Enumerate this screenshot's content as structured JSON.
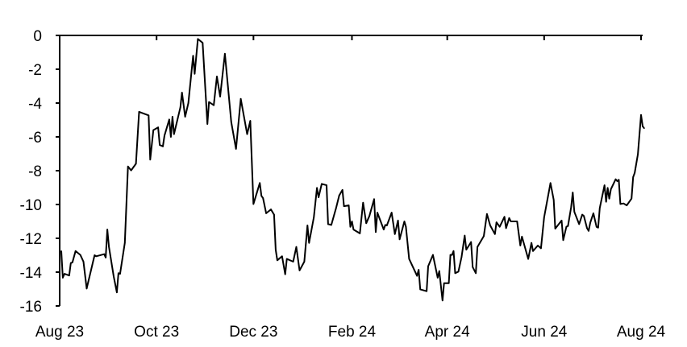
{
  "chart_data": {
    "type": "line",
    "title": "",
    "xlabel": "",
    "ylabel": "",
    "ylim": [
      -16,
      0
    ],
    "xlim": [
      "2023-08-01",
      "2024-08-01"
    ],
    "grid": false,
    "line_color": "#000000",
    "y_ticks": [
      "0",
      "-2",
      "-4",
      "-6",
      "-8",
      "-10",
      "-12",
      "-14",
      "-16"
    ],
    "y_tick_values": [
      0,
      -2,
      -4,
      -6,
      -8,
      -10,
      -12,
      -14,
      -16
    ],
    "x_ticks": [
      "Aug 23",
      "Oct 23",
      "Dec 23",
      "Feb 24",
      "Apr 24",
      "Jun 24",
      "Aug 24"
    ],
    "x_tick_dates": [
      "2023-08-01",
      "2023-10-01",
      "2023-12-01",
      "2024-02-01",
      "2024-04-01",
      "2024-06-01",
      "2024-08-01"
    ],
    "series": [
      {
        "points": [
          [
            "2023-08-02",
            -12.75
          ],
          [
            "2023-08-03",
            -14.33
          ],
          [
            "2023-08-04",
            -14.1
          ],
          [
            "2023-08-07",
            -14.2
          ],
          [
            "2023-08-08",
            -13.46
          ],
          [
            "2023-08-09",
            -13.43
          ],
          [
            "2023-08-11",
            -12.75
          ],
          [
            "2023-08-14",
            -12.98
          ],
          [
            "2023-08-16",
            -13.38
          ],
          [
            "2023-08-18",
            -14.97
          ],
          [
            "2023-08-23",
            -13.0
          ],
          [
            "2023-08-24",
            -13.06
          ],
          [
            "2023-08-29",
            -12.94
          ],
          [
            "2023-08-30",
            -13.14
          ],
          [
            "2023-08-31",
            -11.48
          ],
          [
            "2023-09-01",
            -12.5
          ],
          [
            "2023-09-04",
            -14.25
          ],
          [
            "2023-09-06",
            -15.2
          ],
          [
            "2023-09-07",
            -14.06
          ],
          [
            "2023-09-08",
            -14.1
          ],
          [
            "2023-09-11",
            -12.27
          ],
          [
            "2023-09-13",
            -7.75
          ],
          [
            "2023-09-15",
            -7.98
          ],
          [
            "2023-09-18",
            -7.59
          ],
          [
            "2023-09-20",
            -4.52
          ],
          [
            "2023-09-26",
            -4.73
          ],
          [
            "2023-09-27",
            -7.35
          ],
          [
            "2023-09-29",
            -5.6
          ],
          [
            "2023-10-02",
            -5.44
          ],
          [
            "2023-10-03",
            -6.48
          ],
          [
            "2023-10-05",
            -6.56
          ],
          [
            "2023-10-06",
            -5.92
          ],
          [
            "2023-10-09",
            -4.97
          ],
          [
            "2023-10-10",
            -6.0
          ],
          [
            "2023-10-11",
            -4.81
          ],
          [
            "2023-10-12",
            -5.84
          ],
          [
            "2023-10-16",
            -4.25
          ],
          [
            "2023-10-17",
            -3.38
          ],
          [
            "2023-10-19",
            -4.81
          ],
          [
            "2023-10-21",
            -4.0
          ],
          [
            "2023-10-24",
            -1.2
          ],
          [
            "2023-10-25",
            -2.27
          ],
          [
            "2023-10-27",
            -0.21
          ],
          [
            "2023-10-30",
            -0.44
          ],
          [
            "2023-11-02",
            -5.24
          ],
          [
            "2023-11-03",
            -3.94
          ],
          [
            "2023-11-06",
            -4.13
          ],
          [
            "2023-11-08",
            -2.43
          ],
          [
            "2023-11-10",
            -3.62
          ],
          [
            "2023-11-13",
            -1.08
          ],
          [
            "2023-11-17",
            -5.13
          ],
          [
            "2023-11-20",
            -6.71
          ],
          [
            "2023-11-23",
            -3.75
          ],
          [
            "2023-11-27",
            -5.84
          ],
          [
            "2023-11-29",
            -5.05
          ],
          [
            "2023-12-01",
            -9.97
          ],
          [
            "2023-12-05",
            -8.73
          ],
          [
            "2023-12-06",
            -9.49
          ],
          [
            "2023-12-07",
            -9.62
          ],
          [
            "2023-12-09",
            -10.52
          ],
          [
            "2023-12-12",
            -10.29
          ],
          [
            "2023-12-14",
            -10.6
          ],
          [
            "2023-12-15",
            -12.67
          ],
          [
            "2023-12-16",
            -13.3
          ],
          [
            "2023-12-19",
            -13.06
          ],
          [
            "2023-12-21",
            -14.13
          ],
          [
            "2023-12-22",
            -13.22
          ],
          [
            "2023-12-26",
            -13.38
          ],
          [
            "2023-12-28",
            -12.51
          ],
          [
            "2023-12-30",
            -13.9
          ],
          [
            "2024-01-02",
            -13.38
          ],
          [
            "2024-01-04",
            -11.24
          ],
          [
            "2024-01-05",
            -12.27
          ],
          [
            "2024-01-08",
            -10.76
          ],
          [
            "2024-01-10",
            -9.02
          ],
          [
            "2024-01-11",
            -9.57
          ],
          [
            "2024-01-13",
            -8.78
          ],
          [
            "2024-01-16",
            -8.86
          ],
          [
            "2024-01-17",
            -11.16
          ],
          [
            "2024-01-19",
            -11.21
          ],
          [
            "2024-01-22",
            -10.21
          ],
          [
            "2024-01-24",
            -9.46
          ],
          [
            "2024-01-26",
            -9.14
          ],
          [
            "2024-01-27",
            -10.1
          ],
          [
            "2024-01-30",
            -10.05
          ],
          [
            "2024-01-31",
            -11.32
          ],
          [
            "2024-02-01",
            -11.0
          ],
          [
            "2024-02-02",
            -11.48
          ],
          [
            "2024-02-06",
            -11.71
          ],
          [
            "2024-02-08",
            -9.89
          ],
          [
            "2024-02-10",
            -11.11
          ],
          [
            "2024-02-12",
            -10.68
          ],
          [
            "2024-02-15",
            -9.68
          ],
          [
            "2024-02-16",
            -11.63
          ],
          [
            "2024-02-17",
            -10.48
          ],
          [
            "2024-02-21",
            -11.48
          ],
          [
            "2024-02-22",
            -11.21
          ],
          [
            "2024-02-23",
            -11.24
          ],
          [
            "2024-02-26",
            -10.48
          ],
          [
            "2024-02-28",
            -11.75
          ],
          [
            "2024-03-01",
            -10.95
          ],
          [
            "2024-03-02",
            -12.06
          ],
          [
            "2024-03-05",
            -11.0
          ],
          [
            "2024-03-06",
            -11.32
          ],
          [
            "2024-03-08",
            -13.22
          ],
          [
            "2024-03-13",
            -14.22
          ],
          [
            "2024-03-14",
            -13.86
          ],
          [
            "2024-03-15",
            -15.02
          ],
          [
            "2024-03-19",
            -15.13
          ],
          [
            "2024-03-20",
            -13.65
          ],
          [
            "2024-03-23",
            -12.98
          ],
          [
            "2024-03-26",
            -14.33
          ],
          [
            "2024-03-27",
            -13.94
          ],
          [
            "2024-03-29",
            -15.68
          ],
          [
            "2024-03-30",
            -14.65
          ],
          [
            "2024-04-02",
            -14.65
          ],
          [
            "2024-04-03",
            -12.98
          ],
          [
            "2024-04-04",
            -12.98
          ],
          [
            "2024-04-05",
            -12.75
          ],
          [
            "2024-04-06",
            -14.06
          ],
          [
            "2024-04-08",
            -13.97
          ],
          [
            "2024-04-10",
            -13.11
          ],
          [
            "2024-04-12",
            -11.84
          ],
          [
            "2024-04-13",
            -12.67
          ],
          [
            "2024-04-16",
            -12.22
          ],
          [
            "2024-04-17",
            -13.7
          ],
          [
            "2024-04-19",
            -14.06
          ],
          [
            "2024-04-20",
            -12.51
          ],
          [
            "2024-04-24",
            -11.87
          ],
          [
            "2024-04-26",
            -10.56
          ],
          [
            "2024-04-28",
            -11.24
          ],
          [
            "2024-05-01",
            -11.75
          ],
          [
            "2024-05-02",
            -11.05
          ],
          [
            "2024-05-04",
            -11.32
          ],
          [
            "2024-05-07",
            -10.73
          ],
          [
            "2024-05-08",
            -11.4
          ],
          [
            "2024-05-10",
            -10.8
          ],
          [
            "2024-05-11",
            -11.0
          ],
          [
            "2024-05-15",
            -11.0
          ],
          [
            "2024-05-17",
            -12.43
          ],
          [
            "2024-05-18",
            -11.9
          ],
          [
            "2024-05-22",
            -13.22
          ],
          [
            "2024-05-24",
            -12.27
          ],
          [
            "2024-05-25",
            -12.75
          ],
          [
            "2024-05-28",
            -12.43
          ],
          [
            "2024-05-30",
            -12.59
          ],
          [
            "2024-06-01",
            -10.76
          ],
          [
            "2024-06-05",
            -8.73
          ],
          [
            "2024-06-07",
            -9.73
          ],
          [
            "2024-06-08",
            -11.43
          ],
          [
            "2024-06-12",
            -10.95
          ],
          [
            "2024-06-13",
            -12.11
          ],
          [
            "2024-06-15",
            -11.32
          ],
          [
            "2024-06-16",
            -11.27
          ],
          [
            "2024-06-18",
            -10.16
          ],
          [
            "2024-06-19",
            -9.29
          ],
          [
            "2024-06-20",
            -10.44
          ],
          [
            "2024-06-23",
            -11.16
          ],
          [
            "2024-06-25",
            -10.6
          ],
          [
            "2024-06-26",
            -10.68
          ],
          [
            "2024-06-28",
            -11.4
          ],
          [
            "2024-06-29",
            -11.56
          ],
          [
            "2024-06-30",
            -11.08
          ],
          [
            "2024-07-02",
            -10.52
          ],
          [
            "2024-07-04",
            -11.32
          ],
          [
            "2024-07-05",
            -11.37
          ],
          [
            "2024-07-06",
            -10.21
          ],
          [
            "2024-07-09",
            -8.86
          ],
          [
            "2024-07-10",
            -9.84
          ],
          [
            "2024-07-11",
            -9.02
          ],
          [
            "2024-07-12",
            -9.65
          ],
          [
            "2024-07-13",
            -9.1
          ],
          [
            "2024-07-16",
            -8.51
          ],
          [
            "2024-07-17",
            -8.62
          ],
          [
            "2024-07-18",
            -8.54
          ],
          [
            "2024-07-19",
            -9.97
          ],
          [
            "2024-07-21",
            -9.94
          ],
          [
            "2024-07-23",
            -10.05
          ],
          [
            "2024-07-26",
            -9.65
          ],
          [
            "2024-07-27",
            -8.38
          ],
          [
            "2024-07-28",
            -8.14
          ],
          [
            "2024-07-30",
            -7.03
          ],
          [
            "2024-08-01",
            -4.7
          ],
          [
            "2024-08-02",
            -5.37
          ],
          [
            "2024-08-03",
            -5.49
          ]
        ]
      }
    ]
  }
}
